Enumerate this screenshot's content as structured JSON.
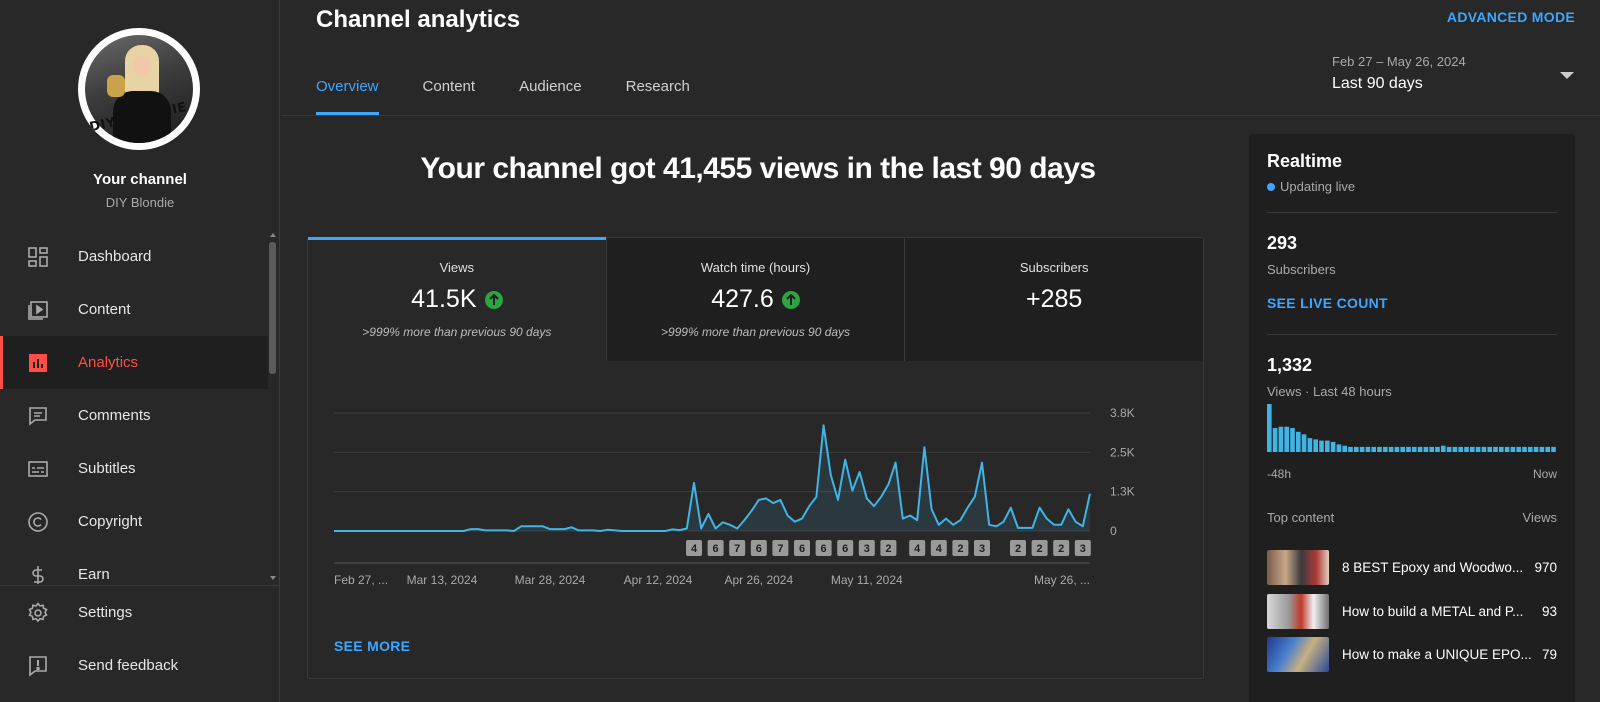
{
  "sidebar": {
    "avatar_text": "DIY BLONDIE",
    "channel_label": "Your channel",
    "channel_name": "DIY Blondie",
    "items": [
      {
        "label": "Dashboard",
        "icon": "dashboard-icon"
      },
      {
        "label": "Content",
        "icon": "content-icon"
      },
      {
        "label": "Analytics",
        "icon": "analytics-icon",
        "active": true
      },
      {
        "label": "Comments",
        "icon": "comments-icon"
      },
      {
        "label": "Subtitles",
        "icon": "subtitles-icon"
      },
      {
        "label": "Copyright",
        "icon": "copyright-icon"
      },
      {
        "label": "Earn",
        "icon": "earn-icon"
      }
    ],
    "bottom_items": [
      {
        "label": "Settings",
        "icon": "gear-icon"
      },
      {
        "label": "Send feedback",
        "icon": "feedback-icon"
      }
    ]
  },
  "header": {
    "title": "Channel analytics",
    "advanced_mode": "ADVANCED MODE",
    "tabs": [
      "Overview",
      "Content",
      "Audience",
      "Research"
    ],
    "date_range": "Feb 27 – May 26, 2024",
    "date_label": "Last 90 days"
  },
  "main": {
    "headline": "Your channel got 41,455 views in the last 90 days",
    "metrics": [
      {
        "label": "Views",
        "value": "41.5K",
        "up": true,
        "sub": ">999% more than previous 90 days"
      },
      {
        "label": "Watch time (hours)",
        "value": "427.6",
        "up": true,
        "sub": ">999% more than previous 90 days"
      },
      {
        "label": "Subscribers",
        "value": "+285",
        "up": false,
        "sub": ""
      }
    ],
    "see_more": "SEE MORE"
  },
  "chart_data": {
    "type": "area",
    "series": [
      {
        "values": [
          0,
          0,
          0,
          0,
          0,
          0,
          0,
          0,
          0,
          0,
          0,
          0,
          0,
          0,
          0,
          0,
          0,
          0,
          0,
          60,
          60,
          20,
          20,
          20,
          20,
          0,
          150,
          150,
          150,
          150,
          60,
          60,
          60,
          120,
          20,
          20,
          20,
          0,
          40,
          20,
          0,
          0,
          0,
          0,
          0,
          0,
          0,
          50,
          30,
          80,
          1550,
          80,
          550,
          80,
          280,
          200,
          80,
          350,
          650,
          1000,
          1050,
          900,
          1000,
          500,
          300,
          400,
          800,
          1100,
          3400,
          1800,
          1000,
          2300,
          1300,
          1900,
          1050,
          800,
          1100,
          1500,
          2200,
          400,
          500,
          350,
          2700,
          700,
          200,
          400,
          200,
          350,
          750,
          1100,
          2200,
          200,
          150,
          300,
          750,
          100,
          100,
          100,
          750,
          400,
          200,
          200,
          700,
          300,
          150,
          1200
        ]
      }
    ],
    "x_tick_labels": [
      "Feb 27, ...",
      "Mar 13, 2024",
      "Mar 28, 2024",
      "Apr 12, 2024",
      "Apr 26, 2024",
      "May 11, 2024",
      "May 26, ..."
    ],
    "y_tick_labels": [
      "3.8K",
      "2.5K",
      "1.3K",
      "0"
    ],
    "ylim": [
      0,
      3800
    ],
    "upload_markers": [
      {
        "x": 50,
        "label": "4"
      },
      {
        "x": 53,
        "label": "6"
      },
      {
        "x": 56,
        "label": "7"
      },
      {
        "x": 59,
        "label": "6"
      },
      {
        "x": 62,
        "label": "7"
      },
      {
        "x": 65,
        "label": "6"
      },
      {
        "x": 68,
        "label": "6"
      },
      {
        "x": 71,
        "label": "6"
      },
      {
        "x": 74,
        "label": "3"
      },
      {
        "x": 77,
        "label": "2"
      },
      {
        "x": 81,
        "label": "4"
      },
      {
        "x": 84,
        "label": "4"
      },
      {
        "x": 87,
        "label": "2"
      },
      {
        "x": 90,
        "label": "3"
      },
      {
        "x": 95,
        "label": "2"
      },
      {
        "x": 98,
        "label": "2"
      },
      {
        "x": 101,
        "label": "2"
      },
      {
        "x": 104,
        "label": "3"
      }
    ],
    "line_color": "#41b4e6",
    "grid": true
  },
  "realtime": {
    "title": "Realtime",
    "live": "Updating live",
    "subscribers_value": "293",
    "subscribers_label": "Subscribers",
    "see_live_count": "SEE LIVE COUNT",
    "views_value": "1,332",
    "views_label": "Views · Last 48 hours",
    "bars": [
      38,
      19,
      20,
      20,
      19,
      16,
      14,
      11,
      10,
      9,
      9,
      8,
      6,
      5,
      4,
      4,
      4,
      4,
      4,
      4,
      4,
      4,
      4,
      4,
      4,
      4,
      4,
      4,
      4,
      4,
      5,
      4,
      4,
      4,
      4,
      4,
      4,
      4,
      4,
      4,
      4,
      4,
      4,
      4,
      4,
      4,
      4,
      4,
      4,
      4
    ],
    "axis_left": "-48h",
    "axis_right": "Now",
    "top_content_label": "Top content",
    "top_content_views_label": "Views",
    "top_content": [
      {
        "title": "8 BEST Epoxy and Woodwo...",
        "views": "970"
      },
      {
        "title": "How to build a METAL and P...",
        "views": "93"
      },
      {
        "title": "How to make a UNIQUE EPO...",
        "views": "79"
      }
    ]
  }
}
